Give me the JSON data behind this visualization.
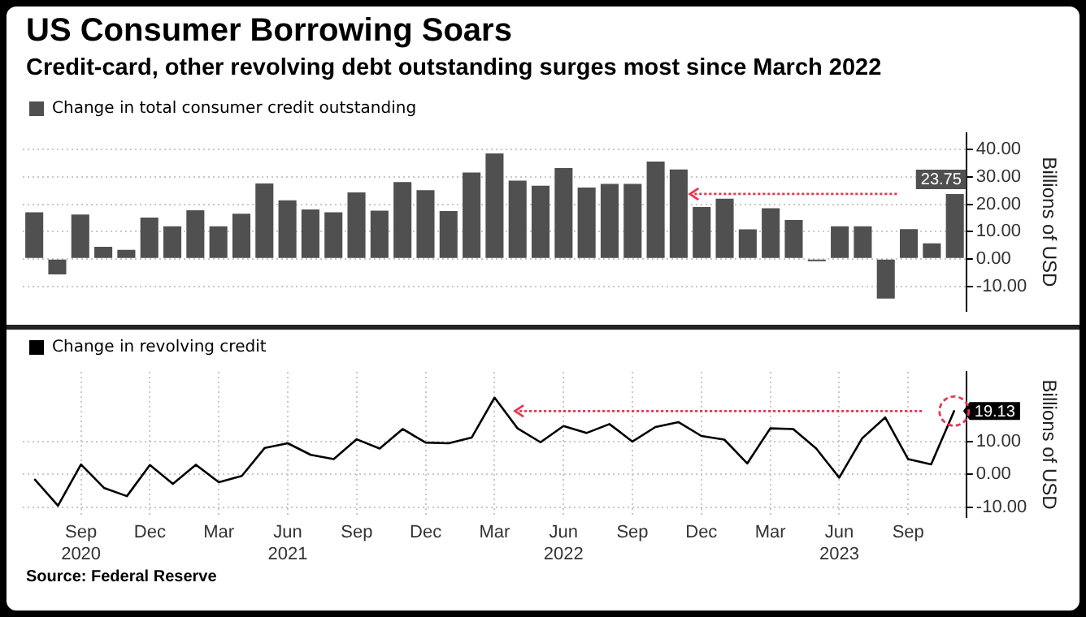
{
  "chart_data": [
    {
      "type": "bar",
      "title": "US Consumer Borrowing Soars",
      "subtitle": "Credit-card, other revolving debt outstanding surges most since March 2022",
      "ylabel": "Billions of USD",
      "categories": [
        null,
        null,
        null,
        null,
        null,
        null,
        null,
        null,
        null,
        null,
        null,
        null,
        null,
        null,
        null,
        null,
        null,
        null,
        null,
        null,
        null,
        null,
        null,
        null,
        null,
        null,
        null,
        null,
        null,
        null,
        null,
        null,
        null,
        null,
        null,
        null,
        null,
        null,
        null,
        null,
        null
      ],
      "series": [
        {
          "name": "Change in total consumer credit outstanding",
          "color": "#505050",
          "values": [
            17.0,
            -5.7,
            16.2,
            4.4,
            3.3,
            15.1,
            11.9,
            17.8,
            11.9,
            16.5,
            27.6,
            21.4,
            18.1,
            17.0,
            24.3,
            17.6,
            28.1,
            25.1,
            17.5,
            31.6,
            38.6,
            28.6,
            26.8,
            33.2,
            26.1,
            27.4,
            27.4,
            35.6,
            32.7,
            19.0,
            22.0,
            10.8,
            18.5,
            14.2,
            -0.3,
            11.9,
            11.9,
            -14.5,
            10.9,
            5.7,
            23.75
          ],
          "value_labels": [
            null,
            null,
            null,
            null,
            null,
            null,
            null,
            null,
            null,
            null,
            null,
            null,
            null,
            null,
            null,
            null,
            null,
            null,
            null,
            null,
            null,
            null,
            null,
            null,
            null,
            null,
            null,
            null,
            null,
            null,
            null,
            null,
            null,
            null,
            null,
            null,
            null,
            null,
            null,
            null,
            "23.75"
          ]
        }
      ],
      "ylim": [
        -19,
        46
      ],
      "yticks": [
        {
          "value": -10,
          "label": "-10.00"
        },
        {
          "value": 0,
          "label": "0.00"
        },
        {
          "value": 10,
          "label": "10.00"
        },
        {
          "value": 20,
          "label": "20.00"
        },
        {
          "value": 30,
          "label": "30.00"
        },
        {
          "value": 40,
          "label": "40.00"
        }
      ],
      "tick_labels": "y",
      "grid": "y",
      "legend": "top left"
    },
    {
      "type": "line",
      "ylabel": "Billions of USD",
      "x": [
        "2020-07",
        "2020-08",
        "2020-09",
        "2020-10",
        "2020-11",
        "2020-12",
        "2021-01",
        "2021-02",
        "2021-03",
        "2021-04",
        "2021-05",
        "2021-06",
        "2021-07",
        "2021-08",
        "2021-09",
        "2021-10",
        "2021-11",
        "2021-12",
        "2022-01",
        "2022-02",
        "2022-03",
        "2022-04",
        "2022-05",
        "2022-06",
        "2022-07",
        "2022-08",
        "2022-09",
        "2022-10",
        "2022-11",
        "2022-12",
        "2023-01",
        "2023-02",
        "2023-03",
        "2023-04",
        "2023-05",
        "2023-06",
        "2023-07",
        "2023-08",
        "2023-09",
        "2023-10",
        "2023-11"
      ],
      "series": [
        {
          "name": "Change in revolving credit",
          "color": "#000000",
          "values": [
            -1.6,
            -9.5,
            3.0,
            -4.1,
            -6.6,
            2.8,
            -2.9,
            2.9,
            -2.4,
            -0.5,
            8.0,
            9.4,
            5.9,
            4.6,
            10.6,
            7.8,
            13.7,
            9.6,
            9.4,
            11.1,
            23.2,
            13.9,
            9.7,
            14.6,
            12.5,
            15.2,
            9.9,
            14.3,
            15.8,
            11.6,
            10.5,
            3.3,
            13.9,
            13.7,
            7.8,
            -1.0,
            10.9,
            17.2,
            4.6,
            3.0,
            19.13
          ],
          "value_labels": [
            null,
            null,
            null,
            null,
            null,
            null,
            null,
            null,
            null,
            null,
            null,
            null,
            null,
            null,
            null,
            null,
            null,
            null,
            null,
            null,
            null,
            null,
            null,
            null,
            null,
            null,
            null,
            null,
            null,
            null,
            null,
            null,
            null,
            null,
            null,
            null,
            null,
            null,
            null,
            null,
            "19.13"
          ]
        }
      ],
      "xlim": [
        "2020-06-15",
        "2023-11-17"
      ],
      "xticks": [
        {
          "value": "2020-09",
          "label": "Sep 2020"
        },
        {
          "value": "2020-12",
          "label": "Dec"
        },
        {
          "value": "2021-03",
          "label": "Mar"
        },
        {
          "value": "2021-06",
          "label": "Jun 2021"
        },
        {
          "value": "2021-09",
          "label": "Sep"
        },
        {
          "value": "2021-12",
          "label": "Dec"
        },
        {
          "value": "2022-03",
          "label": "Mar"
        },
        {
          "value": "2022-06",
          "label": "Jun 2022"
        },
        {
          "value": "2022-09",
          "label": "Sep"
        },
        {
          "value": "2022-12",
          "label": "Dec"
        },
        {
          "value": "2023-03",
          "label": "Mar"
        },
        {
          "value": "2023-06",
          "label": "Jun 2023"
        },
        {
          "value": "2023-09",
          "label": "Sep"
        }
      ],
      "ylim": [
        -13,
        31
      ],
      "yticks": [
        {
          "value": -10,
          "label": "-10.00"
        },
        {
          "value": 0,
          "label": "0.00"
        },
        {
          "value": 10,
          "label": "10.00"
        }
      ],
      "grid": true,
      "legend": "top left",
      "marker": "none",
      "line_style": "solid",
      "annotations": [
        "Source: Federal Reserve"
      ]
    }
  ]
}
